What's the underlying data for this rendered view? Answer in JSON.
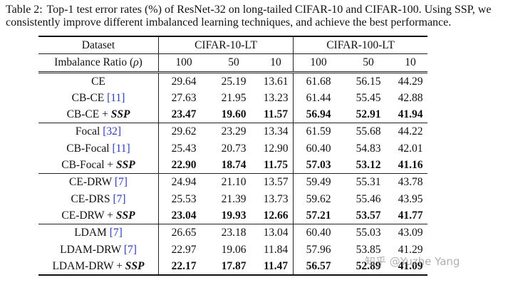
{
  "caption": {
    "label": "Table 2:",
    "text": "Top-1 test error rates (%) of ResNet-32 on long-tailed CIFAR-10 and CIFAR-100. Using SSP, we consistently improve different imbalanced learning techniques, and achieve the best performance."
  },
  "header": {
    "dataset": "Dataset",
    "ratio_label": "Imbalance Ratio (",
    "ratio_symbol": "ρ",
    "ratio_close": ")",
    "groups": [
      "CIFAR-10-LT",
      "CIFAR-100-LT"
    ],
    "ratios": [
      "100",
      "50",
      "10",
      "100",
      "50",
      "10"
    ]
  },
  "groups": [
    {
      "rows": [
        {
          "name": "CE",
          "ref": "",
          "ssp": false,
          "values": [
            "29.64",
            "25.19",
            "13.61",
            "61.68",
            "56.15",
            "44.29"
          ]
        },
        {
          "name": "CB-CE ",
          "ref": "[11]",
          "ssp": false,
          "values": [
            "27.63",
            "21.95",
            "13.23",
            "61.44",
            "55.45",
            "42.88"
          ]
        },
        {
          "name": "CB-CE + ",
          "ref": "",
          "ssp": true,
          "values": [
            "23.47",
            "19.60",
            "11.57",
            "56.94",
            "52.91",
            "41.94"
          ]
        }
      ]
    },
    {
      "rows": [
        {
          "name": "Focal ",
          "ref": "[32]",
          "ssp": false,
          "values": [
            "29.62",
            "23.29",
            "13.34",
            "61.59",
            "55.68",
            "44.22"
          ]
        },
        {
          "name": "CB-Focal ",
          "ref": "[11]",
          "ssp": false,
          "values": [
            "25.43",
            "20.73",
            "12.90",
            "60.40",
            "54.83",
            "42.01"
          ]
        },
        {
          "name": "CB-Focal + ",
          "ref": "",
          "ssp": true,
          "values": [
            "22.90",
            "18.74",
            "11.75",
            "57.03",
            "53.12",
            "41.16"
          ]
        }
      ]
    },
    {
      "rows": [
        {
          "name": "CE-DRW ",
          "ref": "[7]",
          "ssp": false,
          "values": [
            "24.94",
            "21.10",
            "13.57",
            "59.49",
            "55.31",
            "43.78"
          ]
        },
        {
          "name": "CE-DRS ",
          "ref": "[7]",
          "ssp": false,
          "values": [
            "25.53",
            "21.39",
            "13.73",
            "59.62",
            "55.46",
            "43.95"
          ]
        },
        {
          "name": "CE-DRW + ",
          "ref": "",
          "ssp": true,
          "values": [
            "23.04",
            "19.93",
            "12.66",
            "57.21",
            "53.57",
            "41.77"
          ]
        }
      ]
    },
    {
      "rows": [
        {
          "name": "LDAM ",
          "ref": "[7]",
          "ssp": false,
          "values": [
            "26.65",
            "23.18",
            "13.04",
            "60.40",
            "55.03",
            "43.09"
          ]
        },
        {
          "name": "LDAM-DRW ",
          "ref": "[7]",
          "ssp": false,
          "values": [
            "22.97",
            "19.06",
            "11.84",
            "57.96",
            "53.85",
            "41.29"
          ]
        },
        {
          "name": "LDAM-DRW + ",
          "ref": "",
          "ssp": true,
          "values": [
            "22.17",
            "17.87",
            "11.47",
            "56.57",
            "52.89",
            "41.09"
          ]
        }
      ]
    }
  ],
  "ssp_label": "SSP",
  "watermark": "知乎 @Yuzhe Yang"
}
